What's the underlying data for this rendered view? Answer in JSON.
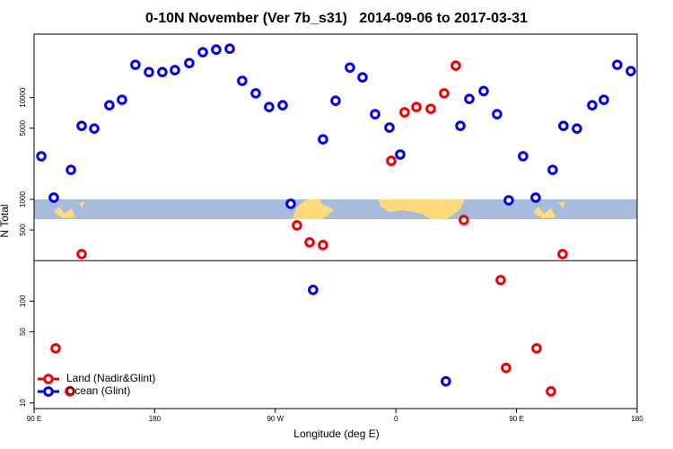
{
  "chart_data": {
    "type": "scatter",
    "title": "0-10N November (Ver 7b_s31)   2014-09-06 to 2017-03-31",
    "xlabel": "Longitude (deg E)",
    "ylabel": "N Total",
    "log_y": true,
    "legend": "lower left",
    "hline": 250,
    "xlim": [
      90,
      540
    ],
    "ylim": [
      8.8,
      42000
    ],
    "xticks": [
      {
        "value": 90,
        "label": "90 E"
      },
      180,
      {
        "value": 270,
        "label": "90 W"
      },
      {
        "value": 360,
        "label": "0"
      },
      {
        "value": 450,
        "label": "90 E"
      },
      {
        "value": 540,
        "label": "180"
      }
    ],
    "yticks": [
      10,
      50,
      100,
      500,
      1000,
      5000,
      10000
    ],
    "series": [
      {
        "name": "Land (Nadir&Glint)",
        "color": "#ee0000",
        "x": [
          125.5,
          286.2,
          295.6,
          305.6,
          356.5,
          366.5,
          375.3,
          386.0,
          396.0,
          404.7,
          410.7,
          106.1,
          116.8,
          438.2,
          442.2,
          465.0,
          475.7,
          484.4
        ],
        "values": [
          290,
          555,
          378,
          356,
          2390,
          7160,
          8070,
          7760,
          11000,
          20600,
          627,
          34.4,
          13.0,
          161,
          22.1,
          34.4,
          13.0,
          290
        ]
      },
      {
        "name": "Ocean (Glint)",
        "color": "#0000ee",
        "x": [
          95.4,
          104.7,
          117.5,
          125.5,
          134.9,
          146.2,
          155.6,
          165.6,
          175.7,
          185.7,
          195.1,
          205.8,
          215.9,
          225.9,
          236.0,
          245.3,
          255.4,
          265.4,
          275.5,
          281.5,
          305.6,
          315.0,
          325.7,
          335.1,
          344.5,
          355.2,
          363.2,
          408.1,
          414.8,
          425.5,
          435.5,
          444.2,
          454.9,
          464.3,
          477.0,
          485.0,
          495.1,
          506.5,
          515.2,
          525.2,
          535.3,
          298.2,
          397.3
        ],
        "values": [
          2650,
          1040,
          1950,
          5270,
          4960,
          8410,
          9510,
          21000,
          17800,
          17800,
          18600,
          21800,
          27900,
          29600,
          30200,
          14600,
          11000,
          8070,
          8410,
          904,
          3890,
          9310,
          19700,
          15800,
          6870,
          5070,
          2760,
          5270,
          9700,
          11600,
          6870,
          980,
          2650,
          1040,
          1950,
          5270,
          4960,
          8410,
          9510,
          21000,
          18200,
          129,
          16.3
        ]
      }
    ]
  }
}
